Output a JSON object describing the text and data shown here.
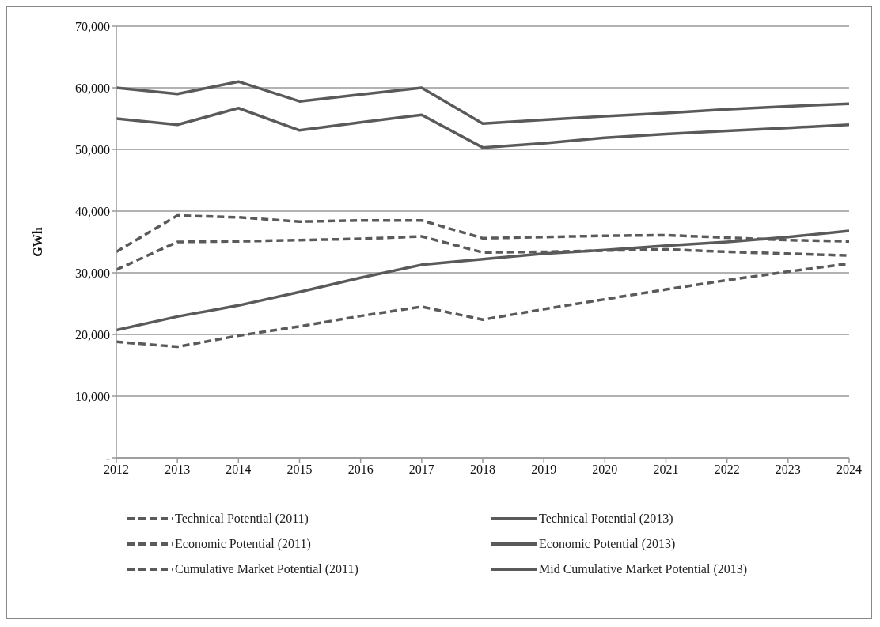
{
  "chart_data": {
    "type": "line",
    "ylabel": "GWh",
    "categories": [
      "2012",
      "2013",
      "2014",
      "2015",
      "2016",
      "2017",
      "2018",
      "2019",
      "2020",
      "2021",
      "2022",
      "2023",
      "2024"
    ],
    "series": [
      {
        "name": "Technical Potential (2011)",
        "color": "#5a5a5a",
        "line_style": "dashed",
        "values": [
          33400,
          39300,
          39000,
          38300,
          38500,
          38500,
          35600,
          35800,
          36000,
          36100,
          35700,
          35300,
          35100
        ]
      },
      {
        "name": "Technical Potential (2013)",
        "color": "#5a5a5a",
        "line_style": "solid",
        "values": [
          60000,
          59000,
          61000,
          57800,
          58900,
          60000,
          54200,
          54800,
          55400,
          55900,
          56500,
          57000,
          57400
        ]
      },
      {
        "name": "Economic Potential (2011)",
        "color": "#5a5a5a",
        "line_style": "dashed",
        "values": [
          30500,
          35000,
          35100,
          35300,
          35500,
          35900,
          33300,
          33400,
          33600,
          33800,
          33400,
          33100,
          32800
        ]
      },
      {
        "name": "Economic Potential (2013)",
        "color": "#5a5a5a",
        "line_style": "solid",
        "values": [
          55000,
          54000,
          56700,
          53100,
          54400,
          55600,
          50300,
          51000,
          51900,
          52500,
          53000,
          53500,
          54000
        ]
      },
      {
        "name": "Cumulative Market Potential (2011)",
        "color": "#5a5a5a",
        "line_style": "dashed",
        "values": [
          18800,
          18000,
          19800,
          21300,
          23000,
          24500,
          22400,
          24100,
          25700,
          27300,
          28800,
          30200,
          31500
        ]
      },
      {
        "name": "Mid Cumulative Market Potential (2013)",
        "color": "#5a5a5a",
        "line_style": "solid",
        "values": [
          20700,
          22900,
          24700,
          26900,
          29200,
          31300,
          32200,
          33100,
          33700,
          34400,
          35000,
          35800,
          36800
        ]
      }
    ],
    "ylim": [
      0,
      70000
    ],
    "yticks": [
      {
        "value": 0,
        "label": "-"
      },
      {
        "value": 10000,
        "label": "10,000"
      },
      {
        "value": 20000,
        "label": "20,000"
      },
      {
        "value": 30000,
        "label": "30,000"
      },
      {
        "value": 40000,
        "label": "40,000"
      },
      {
        "value": 50000,
        "label": "50,000"
      },
      {
        "value": 60000,
        "label": "60,000"
      },
      {
        "value": 70000,
        "label": "70,000"
      }
    ],
    "grid": "y",
    "legend": "bottom",
    "marker": "none"
  }
}
